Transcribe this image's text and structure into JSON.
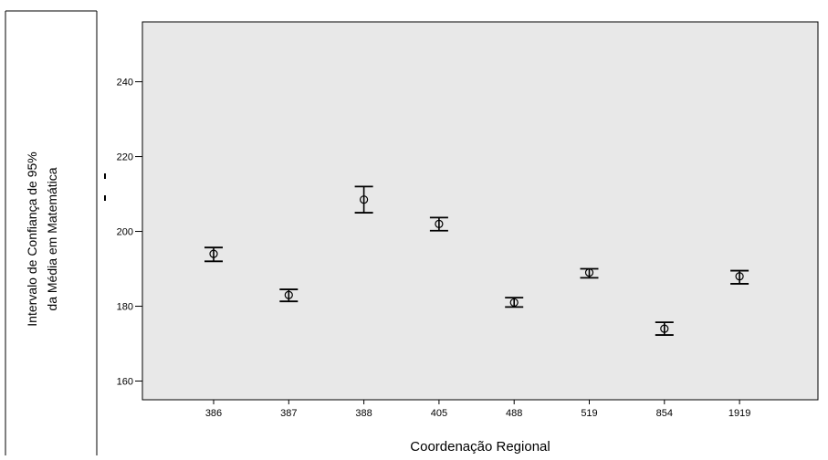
{
  "chart_data": {
    "type": "scatter",
    "subtype": "error-bar",
    "title": "",
    "xlabel": "Coordenação Regional",
    "ylabel_lines": [
      "Intervalo de Confiança de 95%",
      "da Média  em Matemática"
    ],
    "categories": [
      "386",
      "387",
      "388",
      "405",
      "488",
      "519",
      "854",
      "1919"
    ],
    "means": [
      194,
      183,
      208.5,
      202,
      181,
      189,
      174,
      188
    ],
    "ci_lower": [
      192,
      181.3,
      205,
      200.2,
      179.8,
      187.6,
      172.3,
      186
    ],
    "ci_upper": [
      195.7,
      184.5,
      212,
      203.7,
      182.3,
      190,
      175.7,
      189.5
    ],
    "yticks": [
      160,
      180,
      200,
      220,
      240
    ],
    "ylim": [
      155,
      256
    ],
    "grid": false,
    "legend": "none",
    "colors": {
      "plot_background": "#e8e8e8",
      "marker": "#000000",
      "page_background": "#ffffff"
    }
  }
}
